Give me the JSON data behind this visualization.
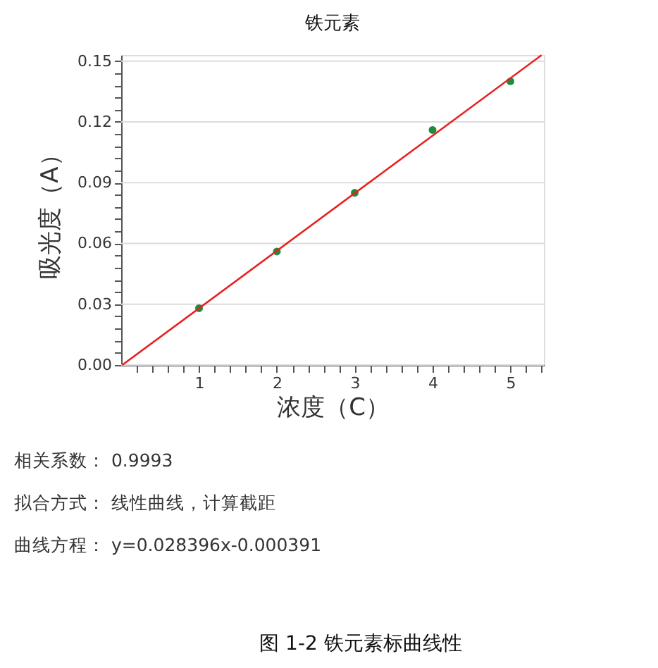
{
  "chart_data": {
    "type": "scatter",
    "title": "铁元素",
    "xlabel": "浓度（C）",
    "ylabel": "吸光度（A）",
    "xlim": [
      0,
      5.43
    ],
    "ylim": [
      0,
      0.153
    ],
    "xticks": [
      {
        "value": 0.2,
        "label": null
      },
      {
        "value": 0.4,
        "label": null
      },
      {
        "value": 0.6,
        "label": null
      },
      {
        "value": 0.8,
        "label": null
      },
      1,
      {
        "value": 1.2,
        "label": null
      },
      {
        "value": 1.4,
        "label": null
      },
      {
        "value": 1.6,
        "label": null
      },
      {
        "value": 1.8,
        "label": null
      },
      2,
      {
        "value": 2.2,
        "label": null
      },
      {
        "value": 2.4,
        "label": null
      },
      {
        "value": 2.6,
        "label": null
      },
      {
        "value": 2.8,
        "label": null
      },
      3,
      {
        "value": 3.2,
        "label": null
      },
      {
        "value": 3.4,
        "label": null
      },
      {
        "value": 3.6,
        "label": null
      },
      {
        "value": 3.8,
        "label": null
      },
      4,
      {
        "value": 4.2,
        "label": null
      },
      {
        "value": 4.4,
        "label": null
      },
      {
        "value": 4.6,
        "label": null
      },
      {
        "value": 4.8,
        "label": null
      },
      5,
      {
        "value": 5.2,
        "label": null
      },
      {
        "value": 5.4,
        "label": null
      }
    ],
    "yticks": [
      {
        "value": 0,
        "label": "0.00"
      },
      {
        "value": 0.006,
        "label": null
      },
      {
        "value": 0.012,
        "label": null
      },
      {
        "value": 0.018,
        "label": null
      },
      {
        "value": 0.024,
        "label": null
      },
      {
        "value": 0.03,
        "label": "0.03"
      },
      {
        "value": 0.036,
        "label": null
      },
      {
        "value": 0.042,
        "label": null
      },
      {
        "value": 0.048,
        "label": null
      },
      {
        "value": 0.054,
        "label": null
      },
      {
        "value": 0.06,
        "label": "0.06"
      },
      {
        "value": 0.066,
        "label": null
      },
      {
        "value": 0.072,
        "label": null
      },
      {
        "value": 0.078,
        "label": null
      },
      {
        "value": 0.084,
        "label": null
      },
      {
        "value": 0.09,
        "label": "0.09"
      },
      {
        "value": 0.096,
        "label": null
      },
      {
        "value": 0.102,
        "label": null
      },
      {
        "value": 0.108,
        "label": null
      },
      {
        "value": 0.114,
        "label": null
      },
      {
        "value": 0.12,
        "label": "0.12"
      },
      {
        "value": 0.126,
        "label": null
      },
      {
        "value": 0.132,
        "label": null
      },
      {
        "value": 0.138,
        "label": null
      },
      {
        "value": 0.144,
        "label": null
      },
      {
        "value": 0.15,
        "label": "0.15"
      }
    ],
    "grid": "y",
    "marker": "circle",
    "series": [
      {
        "color": "#1e8c3c",
        "x": [
          1,
          2,
          3,
          4,
          5
        ],
        "values": [
          0.028,
          0.056,
          0.085,
          0.116,
          0.14
        ]
      },
      {
        "type": "line",
        "color": "#e82020",
        "marker": "none",
        "line_style": "solid",
        "x": [
          0.014,
          5.4
        ],
        "values": [
          0.0,
          0.1529
        ]
      }
    ],
    "annotations": [
      "相关系数：      0.9993",
      "拟合方式：      线性曲线，计算截距",
      "曲线方程：      y=0.028396x-0.000391",
      "图 1-2  铁元素标曲线性"
    ]
  }
}
